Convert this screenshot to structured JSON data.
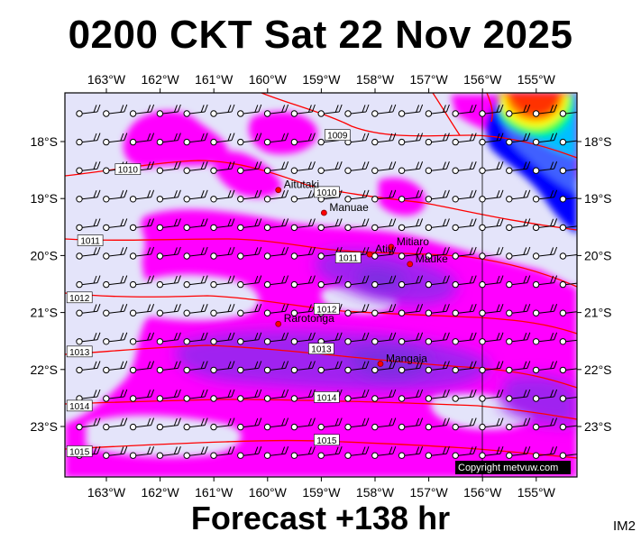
{
  "header": {
    "title": "0200 CKT Sat 22 Nov 2025"
  },
  "footer": {
    "forecast": "Forecast +138 hr",
    "code": "IM2"
  },
  "map": {
    "lon_labels": [
      "163°W",
      "162°W",
      "161°W",
      "160°W",
      "159°W",
      "158°W",
      "157°W",
      "156°W",
      "155°W"
    ],
    "lat_labels": [
      "18°S",
      "19°S",
      "20°S",
      "21°S",
      "22°S",
      "23°S"
    ],
    "lon_ticks": [
      -163,
      -162,
      -161,
      -160,
      -159,
      -158,
      -157,
      -156,
      -155
    ],
    "lat_ticks": [
      -18,
      -19,
      -20,
      -21,
      -22,
      -23
    ],
    "lon_range": [
      -163.7,
      -154.4
    ],
    "lat_range": [
      -17.3,
      -23.7
    ],
    "places": [
      {
        "name": "Aitutaki",
        "lon": -159.8,
        "lat": -18.85
      },
      {
        "name": "Manuae",
        "lon": -158.95,
        "lat": -19.25
      },
      {
        "name": "Mitiaro",
        "lon": -157.7,
        "lat": -19.85
      },
      {
        "name": "Atiu",
        "lon": -158.1,
        "lat": -19.98
      },
      {
        "name": "Mauke",
        "lon": -157.35,
        "lat": -20.15
      },
      {
        "name": "Rarotonga",
        "lon": -159.8,
        "lat": -21.2
      },
      {
        "name": "Mangaia",
        "lon": -157.9,
        "lat": -21.9
      }
    ],
    "isobars": [
      {
        "label": "1009",
        "lon": -158.7,
        "lat": -17.9
      },
      {
        "label": "1010",
        "lon": -162.6,
        "lat": -18.5
      },
      {
        "label": "1010",
        "lon": -158.9,
        "lat": -18.9
      },
      {
        "label": "1011",
        "lon": -163.3,
        "lat": -19.75
      },
      {
        "label": "1011",
        "lon": -158.5,
        "lat": -20.05
      },
      {
        "label": "1012",
        "lon": -163.5,
        "lat": -20.75
      },
      {
        "label": "1012",
        "lon": -158.9,
        "lat": -20.95
      },
      {
        "label": "1013",
        "lon": -163.5,
        "lat": -21.7
      },
      {
        "label": "1013",
        "lon": -159.0,
        "lat": -21.65
      },
      {
        "label": "1014",
        "lon": -163.5,
        "lat": -22.65
      },
      {
        "label": "1014",
        "lon": -158.9,
        "lat": -22.5
      },
      {
        "label": "1015",
        "lon": -163.5,
        "lat": -23.45
      },
      {
        "label": "1015",
        "lon": -158.9,
        "lat": -23.25
      }
    ],
    "copyright": "Copyright metvuw.com",
    "colors": {
      "background": "#e4e4fa",
      "rain_magenta": "#ff00ff",
      "rain_purple": "#a020f0",
      "rain_violet": "#7b2ee0",
      "heavy_blue": "#0000ff",
      "heavy_red": "#ff3300",
      "heavy_green": "#00ff55",
      "heavy_yellow": "#ffff00",
      "isobar": "#ff0000"
    }
  }
}
